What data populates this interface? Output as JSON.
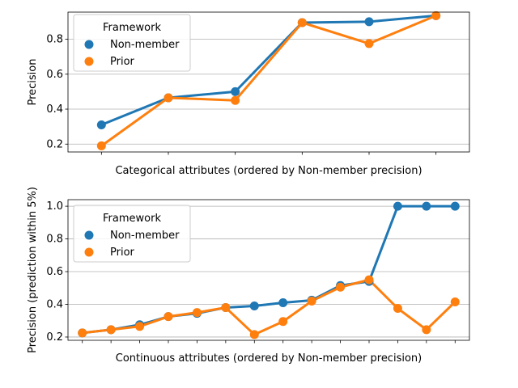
{
  "chart_data": [
    {
      "type": "line",
      "xlabel": "Categorical attributes (ordered by Non-member precision)",
      "ylabel": "Precision",
      "ylim": [
        0.155,
        0.955
      ],
      "yticks": [
        0.2,
        0.4,
        0.6,
        0.8
      ],
      "ytick_labels": [
        "0.2",
        "0.4",
        "0.6",
        "0.8"
      ],
      "grid": "horizontal",
      "legend": {
        "title": "Framework",
        "placement": "top-left"
      },
      "x": [
        0,
        1,
        2,
        3,
        4,
        5
      ],
      "series": [
        {
          "name": "Non-member",
          "color": "#1f77b4",
          "values": [
            0.31,
            0.465,
            0.5,
            0.895,
            0.9,
            0.935
          ]
        },
        {
          "name": "Prior",
          "color": "#ff7f0e",
          "values": [
            0.19,
            0.465,
            0.45,
            0.895,
            0.775,
            0.935
          ]
        }
      ]
    },
    {
      "type": "line",
      "xlabel": "Continuous attributes (ordered by Non-member precision)",
      "ylabel": "Precision (prediction within 5%)",
      "ylim": [
        0.18,
        1.04
      ],
      "yticks": [
        0.2,
        0.4,
        0.6,
        0.8,
        1.0
      ],
      "ytick_labels": [
        "0.2",
        "0.4",
        "0.6",
        "0.8",
        "1.0"
      ],
      "grid": "horizontal",
      "legend": {
        "title": "Framework",
        "placement": "upper-left"
      },
      "x": [
        0,
        1,
        2,
        3,
        4,
        5,
        6,
        7,
        8,
        9,
        10,
        11,
        12,
        13
      ],
      "series": [
        {
          "name": "Non-member",
          "color": "#1f77b4",
          "values": [
            0.225,
            0.245,
            0.275,
            0.325,
            0.345,
            0.38,
            0.39,
            0.41,
            0.425,
            0.515,
            0.54,
            1.0,
            1.0,
            1.0
          ]
        },
        {
          "name": "Prior",
          "color": "#ff7f0e",
          "values": [
            0.225,
            0.245,
            0.265,
            0.325,
            0.35,
            0.38,
            0.215,
            0.295,
            0.42,
            0.505,
            0.55,
            0.375,
            0.245,
            0.415
          ]
        }
      ]
    }
  ]
}
